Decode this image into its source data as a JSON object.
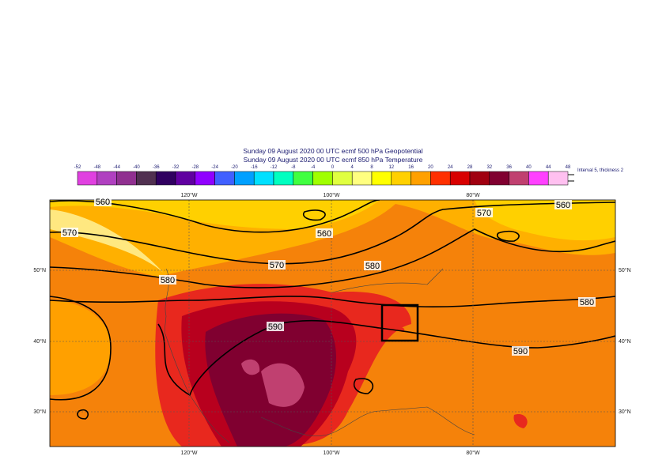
{
  "title_lines": [
    "Sunday 09 August 2020 00 UTC ecmf 500 hPa  Geopotential",
    "Sunday 09 August 2020 00 UTC ecmf 850 hPa  Temperature"
  ],
  "colorbar": {
    "ticks": [
      -52,
      -48,
      -44,
      -40,
      -36,
      -32,
      -28,
      -24,
      -20,
      -16,
      -12,
      -8,
      -4,
      0,
      4,
      8,
      12,
      16,
      20,
      24,
      28,
      32,
      36,
      40,
      44,
      48
    ],
    "colors": [
      "#e040e0",
      "#b040c0",
      "#903090",
      "#503050",
      "#300060",
      "#6000a0",
      "#9000ff",
      "#4060ff",
      "#00a0ff",
      "#00e0ff",
      "#00ffc0",
      "#40ff40",
      "#a0ff00",
      "#e0ff40",
      "#ffff80",
      "#ffff00",
      "#ffd000",
      "#ffa000",
      "#ff3000",
      "#d80000",
      "#a00010",
      "#800030",
      "#c04070",
      "#ff40ff",
      "#ffc0f0"
    ]
  },
  "contour_note": "Interval 5, thickness 2",
  "lon_labels": [
    "120°W",
    "100°W",
    "80°W"
  ],
  "lat_labels": [
    "50°N",
    "40°N",
    "30°N"
  ],
  "contour_labels": [
    560,
    560,
    560,
    570,
    570,
    570,
    580,
    580,
    580,
    590,
    590
  ]
}
